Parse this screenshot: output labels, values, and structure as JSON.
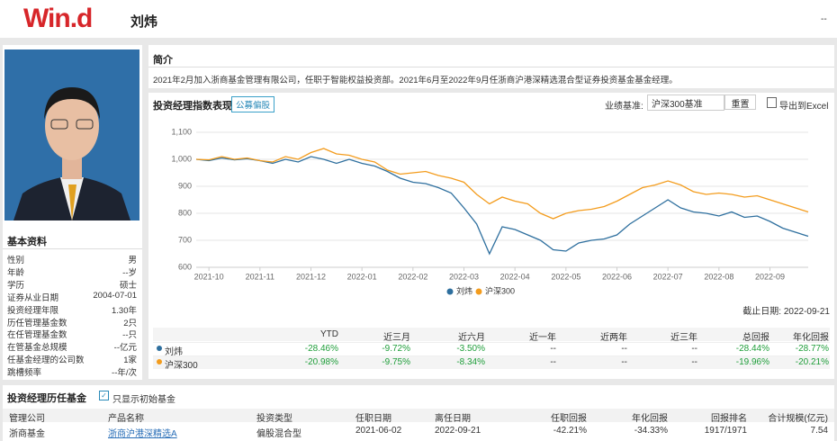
{
  "header": {
    "logo": "Win.d",
    "name": "刘炜",
    "menu": "--"
  },
  "profile": {
    "title": "基本资料",
    "fields": [
      [
        "性别",
        "男"
      ],
      [
        "年龄",
        "--岁"
      ],
      [
        "学历",
        "硕士"
      ],
      [
        "证券从业日期",
        "2004-07-01"
      ],
      [
        "投资经理年限",
        "1.30年"
      ],
      [
        "历任管理基金数",
        "2只"
      ],
      [
        "在任管理基金数",
        "--只"
      ],
      [
        "在管基金总规模",
        "--亿元"
      ],
      [
        "任基金经理的公司数",
        "1家"
      ],
      [
        "跳槽频率",
        "--年/次"
      ]
    ]
  },
  "intro": {
    "title": "简介",
    "text": "2021年2月加入浙商基金管理有限公司，任职于智能权益投资部。2021年6月至2022年9月任浙商沪港深精选混合型证券投资基金基金经理。"
  },
  "performance": {
    "title": "投资经理指数表现",
    "tag": "公募偏股",
    "benchmark_label": "业绩基准:",
    "benchmark": "沪深300基准",
    "reset": "重置",
    "export": "导出到Excel",
    "as_of": "截止日期: 2022-09-21",
    "table": {
      "columns": [
        "YTD",
        "近三月",
        "近六月",
        "近一年",
        "近两年",
        "近三年",
        "总回报",
        "年化回报"
      ],
      "rows": [
        {
          "name": "刘炜",
          "values": [
            "-28.46%",
            "-9.72%",
            "-3.50%",
            "--",
            "--",
            "--",
            "-28.44%",
            "-28.77%"
          ]
        },
        {
          "name": "沪深300",
          "values": [
            "-20.98%",
            "-9.75%",
            "-8.34%",
            "--",
            "--",
            "--",
            "-19.96%",
            "-20.21%"
          ]
        }
      ]
    }
  },
  "chart_data": {
    "type": "line",
    "categories": [
      null,
      "2021-10",
      null,
      null,
      null,
      "2021-11",
      null,
      null,
      null,
      "2021-12",
      null,
      null,
      null,
      "2022-01",
      null,
      null,
      null,
      "2022-02",
      null,
      null,
      null,
      "2022-03",
      null,
      null,
      null,
      "2022-04",
      null,
      null,
      null,
      "2022-05",
      null,
      null,
      null,
      "2022-06",
      null,
      null,
      null,
      "2022-07",
      null,
      null,
      null,
      "2022-08",
      null,
      null,
      null,
      "2022-09",
      null,
      null,
      null
    ],
    "series": [
      {
        "name": "刘炜",
        "color": "#2e6f9e",
        "values": [
          1000,
          995,
          1005,
          998,
          1002,
          995,
          985,
          1000,
          990,
          1010,
          1000,
          985,
          1000,
          985,
          975,
          955,
          930,
          915,
          910,
          895,
          875,
          820,
          760,
          650,
          750,
          740,
          720,
          700,
          665,
          660,
          690,
          700,
          705,
          720,
          760,
          790,
          820,
          850,
          820,
          805,
          800,
          790,
          805,
          785,
          790,
          770,
          745,
          730,
          715
        ]
      },
      {
        "name": "沪深300",
        "color": "#f39c1d",
        "values": [
          1000,
          998,
          1010,
          1000,
          1005,
          995,
          990,
          1010,
          1000,
          1025,
          1040,
          1020,
          1015,
          1000,
          990,
          960,
          945,
          950,
          955,
          940,
          930,
          915,
          870,
          835,
          860,
          845,
          835,
          800,
          780,
          800,
          810,
          815,
          825,
          845,
          870,
          895,
          905,
          920,
          905,
          880,
          870,
          875,
          870,
          860,
          865,
          850,
          835,
          820,
          805
        ]
      }
    ],
    "ylim": [
      600,
      1100
    ],
    "yticks": [
      {
        "value": 1100,
        "label": "1,100"
      },
      {
        "value": 1000,
        "label": "1,000"
      },
      900,
      800,
      700,
      600
    ],
    "grid": true,
    "legend": "bottom"
  },
  "history": {
    "title": "投资经理历任基金",
    "filter": "只显示初始基金",
    "columns": [
      "管理公司",
      "产品名称",
      "投资类型",
      "任职日期",
      "离任日期",
      "任职回报",
      "年化回报",
      "回报排名",
      "合计规模(亿元)"
    ],
    "rows": [
      [
        "浙商基金",
        "浙商沪港深精选A",
        "偏股混合型",
        "2021-06-02",
        "2022-09-21",
        "-42.21%",
        "-34.33%",
        "1917/1971",
        "7.54"
      ]
    ]
  }
}
